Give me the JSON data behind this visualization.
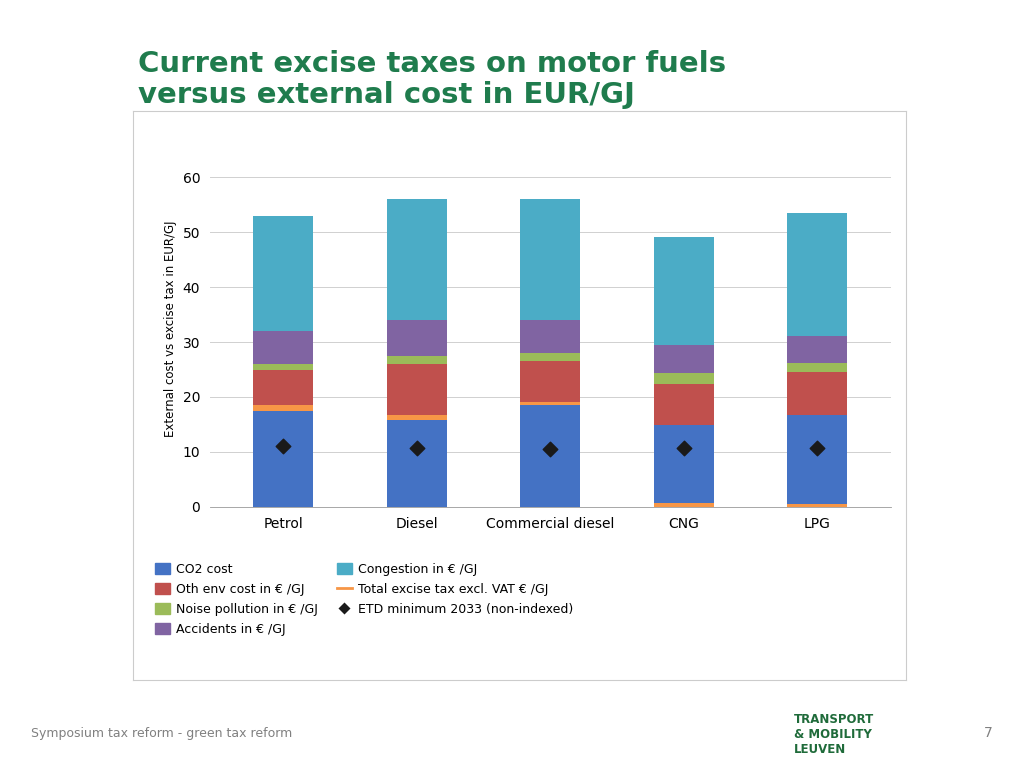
{
  "categories": [
    "Petrol",
    "Diesel",
    "Commercial diesel",
    "CNG",
    "LPG"
  ],
  "co2_cost": [
    17.5,
    15.8,
    18.5,
    14.2,
    16.2
  ],
  "excise_tax": [
    1.0,
    1.0,
    0.5,
    0.7,
    0.6
  ],
  "oth_env_cost": [
    6.5,
    9.2,
    7.5,
    7.5,
    7.8
  ],
  "noise_pollution": [
    1.0,
    1.5,
    1.5,
    2.0,
    1.5
  ],
  "accidents": [
    6.0,
    6.5,
    6.0,
    5.0,
    5.0
  ],
  "congestion": [
    21.0,
    22.0,
    22.0,
    19.8,
    22.4
  ],
  "etd_values": [
    11.0,
    10.8,
    10.5,
    10.8,
    10.8
  ],
  "colors": {
    "co2_cost": "#4472C4",
    "excise_tax": "#F79646",
    "oth_env_cost": "#C0504D",
    "noise_pollution": "#9BBB59",
    "accidents": "#8064A2",
    "congestion": "#4BACC6"
  },
  "title_line1": "Current excise taxes on motor fuels",
  "title_line2": "versus external cost in EUR/GJ",
  "ylabel": "External cost vs excise tax in EUR/GJ",
  "ylim": [
    0,
    65
  ],
  "yticks": [
    0,
    10,
    20,
    30,
    40,
    50,
    60
  ],
  "legend_labels": {
    "co2_cost": "CO2 cost",
    "oth_env_cost": "Oth env cost in € /GJ",
    "noise_pollution": "Noise pollution in € /GJ",
    "accidents": "Accidents in € /GJ",
    "congestion": "Congestion in € /GJ",
    "excise_tax": "Total excise tax excl. VAT € /GJ",
    "etd": "ETD minimum 2033 (non-indexed)"
  },
  "background_color": "#FFFFFF",
  "title_color": "#1F7C4D",
  "footer_text": "Symposium tax reform - green tax reform",
  "footer_num": "7",
  "footer_dark_green": "#1F6B3A",
  "footer_lime_green": "#8DC63F",
  "footer_text_color": "#808080"
}
